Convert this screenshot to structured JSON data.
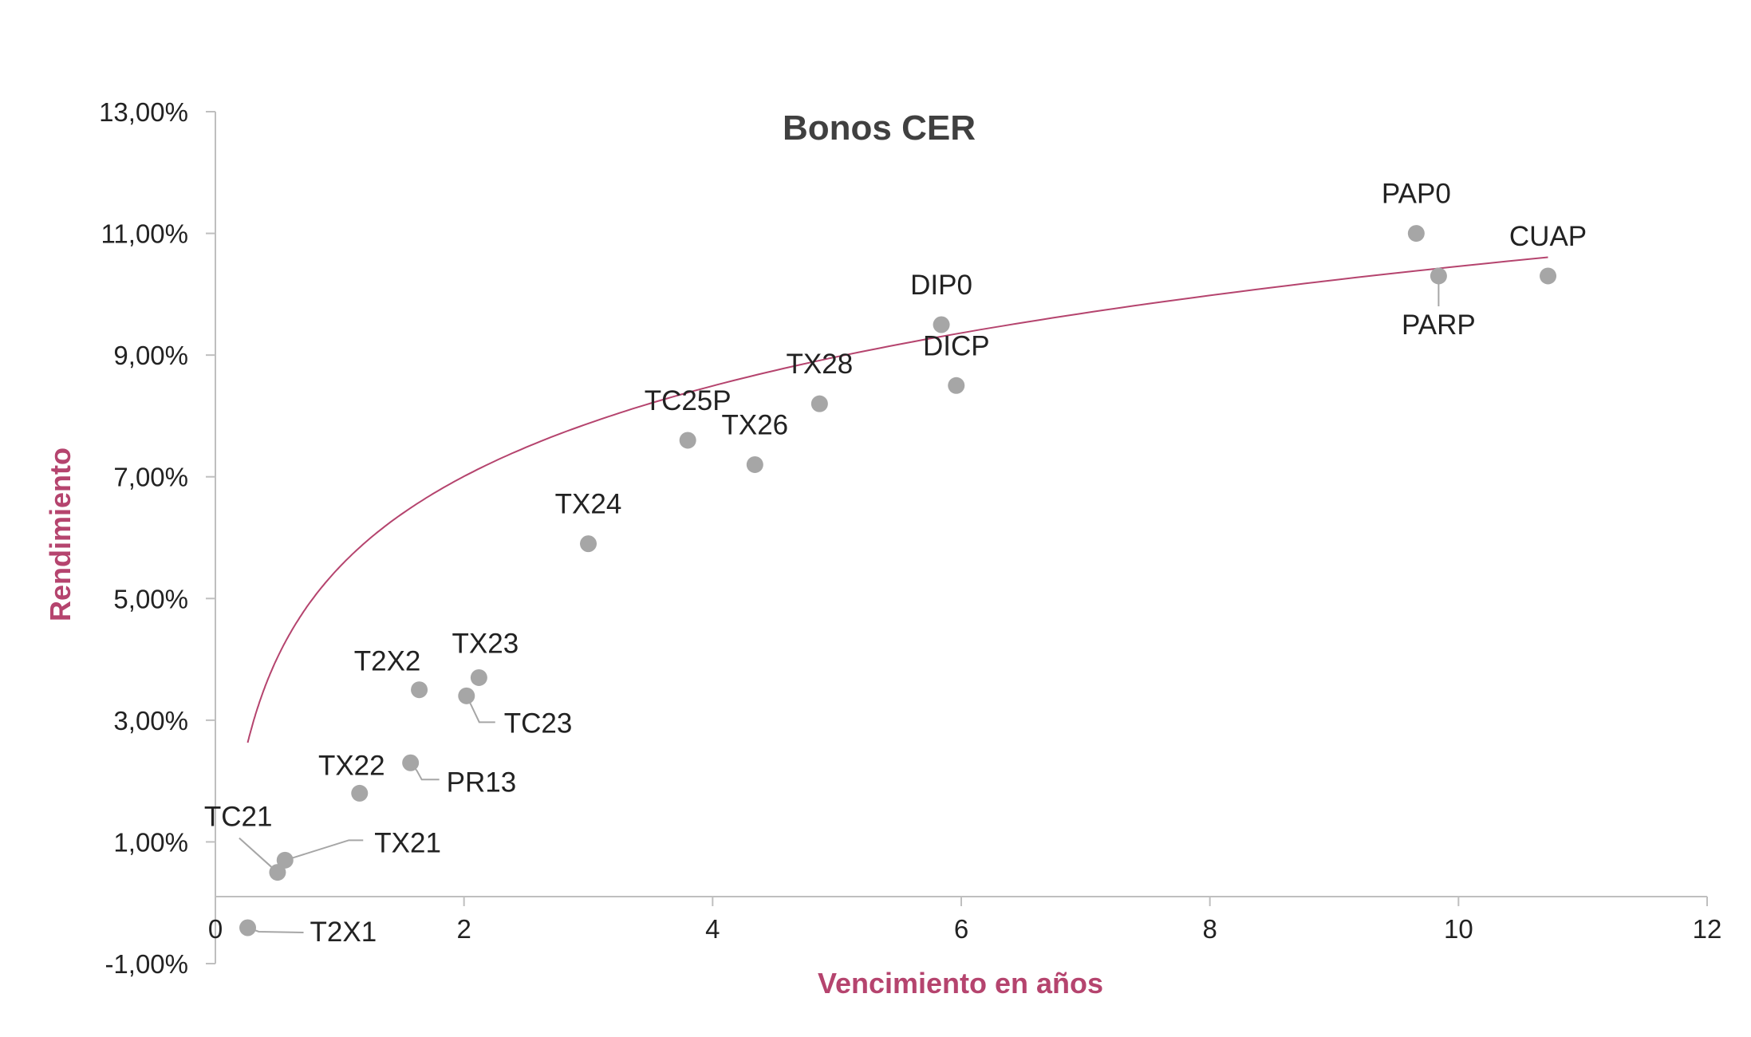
{
  "chart_data": {
    "type": "scatter",
    "title": "Bonos CER",
    "xlabel": "Vencimiento en años",
    "ylabel": "Rendimiento",
    "xlim": [
      0,
      12
    ],
    "ylim": [
      -0.01,
      0.13
    ],
    "x_ticks": [
      0,
      2,
      4,
      6,
      8,
      10,
      12
    ],
    "y_ticks": [
      -0.01,
      0.01,
      0.03,
      0.05,
      0.07,
      0.09,
      0.11,
      0.13
    ],
    "x_tick_labels": [
      "0",
      "2",
      "4",
      "6",
      "8",
      "10",
      "12"
    ],
    "y_tick_labels": [
      "-1,00%",
      "1,00%",
      "3,00%",
      "5,00%",
      "7,00%",
      "9,00%",
      "11,00%",
      "13,00%"
    ],
    "grid": false,
    "legend": "none",
    "point_color": "#a6a6a6",
    "trend_color": "#b5446e",
    "trendline": {
      "type": "logarithmic",
      "a": 0.0552,
      "b": 0.02145,
      "x_range": [
        0.26,
        10.72
      ]
    },
    "series": [
      {
        "points": [
          {
            "label": "T2X1",
            "x": 0.26,
            "y": -0.0041
          },
          {
            "label": "TC21",
            "x": 0.5,
            "y": 0.005
          },
          {
            "label": "TX21",
            "x": 0.56,
            "y": 0.007
          },
          {
            "label": "TX22",
            "x": 1.16,
            "y": 0.018
          },
          {
            "label": "PR13",
            "x": 1.57,
            "y": 0.023
          },
          {
            "label": "T2X2",
            "x": 1.64,
            "y": 0.035
          },
          {
            "label": "TC23",
            "x": 2.02,
            "y": 0.034
          },
          {
            "label": "TX23",
            "x": 2.12,
            "y": 0.037
          },
          {
            "label": "TX24",
            "x": 3.0,
            "y": 0.059
          },
          {
            "label": "TC25P",
            "x": 3.8,
            "y": 0.076
          },
          {
            "label": "TX26",
            "x": 4.34,
            "y": 0.072
          },
          {
            "label": "TX28",
            "x": 4.86,
            "y": 0.082
          },
          {
            "label": "DIP0",
            "x": 5.84,
            "y": 0.095
          },
          {
            "label": "DICP",
            "x": 5.96,
            "y": 0.085
          },
          {
            "label": "PAP0",
            "x": 9.66,
            "y": 0.11
          },
          {
            "label": "PARP",
            "x": 9.84,
            "y": 0.103
          },
          {
            "label": "CUAP",
            "x": 10.72,
            "y": 0.103
          }
        ]
      }
    ]
  }
}
